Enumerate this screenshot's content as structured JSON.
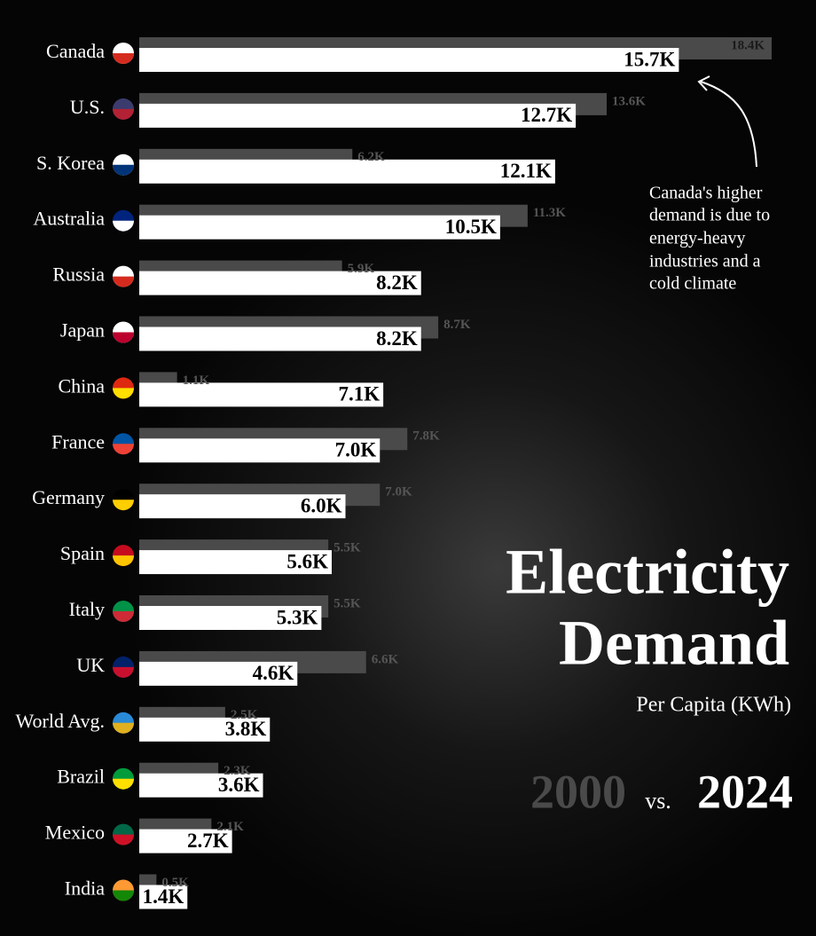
{
  "chart_data": {
    "type": "bar",
    "orientation": "horizontal",
    "title": [
      "Electricity",
      "Demand"
    ],
    "subtitle": "Per Capita (KWh)",
    "legend_separator": "vs.",
    "annotation": [
      "Canada's higher",
      "demand is due to",
      "energy-heavy",
      "industries and a",
      "cold climate"
    ],
    "categories": [
      "Canada",
      "U.S.",
      "S. Korea",
      "Australia",
      "Russia",
      "Japan",
      "China",
      "France",
      "Germany",
      "Spain",
      "Italy",
      "UK",
      "World Avg.",
      "Brazil",
      "Mexico",
      "India"
    ],
    "series": [
      {
        "name": "2000",
        "color": "#4a4a4a",
        "values": [
          18400,
          13600,
          6200,
          11300,
          5900,
          8700,
          1100,
          7800,
          7000,
          5500,
          5500,
          6600,
          2500,
          2300,
          2100,
          500
        ],
        "value_labels": [
          "18.4K",
          "13.6K",
          "6.2K",
          "11.3K",
          "5.9K",
          "8.7K",
          "1.1K",
          "7.8K",
          "7.0K",
          "5.5K",
          "5.5K",
          "6.6K",
          "2.5K",
          "2.3K",
          "2.1K",
          "0.5K"
        ]
      },
      {
        "name": "2024",
        "color": "#ffffff",
        "values": [
          15700,
          12700,
          12100,
          10500,
          8200,
          8200,
          7100,
          7000,
          6000,
          5600,
          5300,
          4600,
          3800,
          3600,
          2700,
          1400
        ],
        "value_labels": [
          "15.7K",
          "12.7K",
          "12.1K",
          "10.5K",
          "8.2K",
          "8.2K",
          "7.1K",
          "7.0K",
          "6.0K",
          "5.6K",
          "5.3K",
          "4.6K",
          "3.8K",
          "3.6K",
          "2.7K",
          "1.4K"
        ]
      }
    ]
  }
}
